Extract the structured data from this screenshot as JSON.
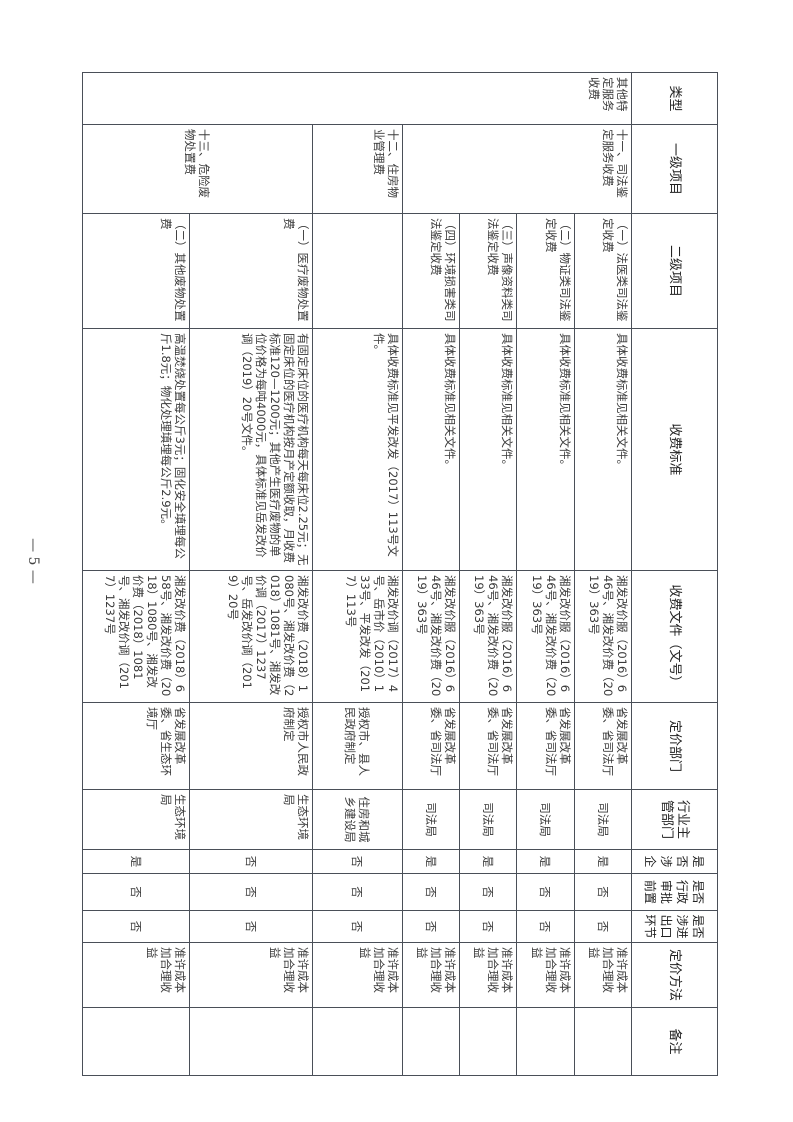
{
  "headers": [
    "类型",
    "一级项目",
    "二级项目",
    "收费标准",
    "收费文件（文号）",
    "定价部门",
    "行业主管部门",
    "是否涉企",
    "是否行政审批前置",
    "是否涉进出口环节",
    "定价方法",
    "备注"
  ],
  "category": "其他特定服务收费",
  "level1": {
    "judicial": "十一、司法鉴定服务收费",
    "housing": "十二、住房物业管理费",
    "hazardous": "十三、危险废物处置费"
  },
  "rows": [
    {
      "level2": "（一）法医类司法鉴定收费",
      "standard": "具体收费标准见相关文件。",
      "document": "湘发改价服（2016）646号、湘发改价费（2019）363号",
      "pricing_dept": "省发展改革委、省司法厅",
      "industry_dept": "司法局",
      "enterprise": "是",
      "approval": "否",
      "import_export": "否",
      "method": "准许成本加合理收益",
      "remark": ""
    },
    {
      "level2": "（二）物证类司法鉴定收费",
      "standard": "具体收费标准见相关文件。",
      "document": "湘发改价服（2016）646号、湘发改价费（2019）363号",
      "pricing_dept": "省发展改革委、省司法厅",
      "industry_dept": "司法局",
      "enterprise": "是",
      "approval": "否",
      "import_export": "否",
      "method": "准许成本加合理收益",
      "remark": ""
    },
    {
      "level2": "（三）声像资料类司法鉴定收费",
      "standard": "具体收费标准见相关文件。",
      "document": "湘发改价服（2016）646号、湘发改价费（2019）363号",
      "pricing_dept": "省发展改革委、省司法厅",
      "industry_dept": "司法局",
      "enterprise": "是",
      "approval": "否",
      "import_export": "否",
      "method": "准许成本加合理收益",
      "remark": ""
    },
    {
      "level2": "（四）环境损害类司法鉴定收费",
      "standard": "具体收费标准见相关文件。",
      "document": "湘发改价服（2016）646号、湘发改价费（2019）363号",
      "pricing_dept": "省发展改革委、省司法厅",
      "industry_dept": "司法局",
      "enterprise": "是",
      "approval": "否",
      "import_export": "否",
      "method": "准许成本加合理收益",
      "remark": ""
    },
    {
      "level2": "",
      "standard": "具体收费标准见平发改发（2017）113号文件。",
      "document": "湘发改价调（2017）4号、岳市价（2010）133号、平发改发（2017）113号",
      "pricing_dept": "授权市、县人民政府制定",
      "industry_dept": "住房和城乡建设局",
      "enterprise": "否",
      "approval": "否",
      "import_export": "否",
      "method": "准许成本加合理收益",
      "remark": ""
    },
    {
      "level2": "（一）医疗废物处置费",
      "standard": "有固定床位的医疗机构每天每床位2.25元；无固定床位的医疗机构按月产定额收取，月收费标准120—1200元；其他产生医疗废物的单位价格为每吨4000元，具体标准见岳发改价调（2019）20号文件。",
      "document": "湘发改价费（2018）1080号、湘发改价费（2018）1081号、湘发改价调（2017）1237号、岳发改价调（2019）20号",
      "pricing_dept": "授权市人民政府制定",
      "industry_dept": "生态环境局",
      "enterprise": "否",
      "approval": "否",
      "import_export": "否",
      "method": "准许成本加合理收益",
      "remark": ""
    },
    {
      "level2": "（二）其他废物处置费",
      "standard": "高温焚烧处置每公斤3元；固化安全填埋每公斤1.8元；物化处理填埋每公斤2.9元。",
      "document": "湘发改价费（2018）658号、湘发改价费（2018）1080号、湘发改价费（2018）1081号、湘发改价调（2017）1237号",
      "pricing_dept": "省发展改革委、省生态环境厅",
      "industry_dept": "生态环境局",
      "enterprise": "是",
      "approval": "否",
      "import_export": "否",
      "method": "准许成本加合理收益",
      "remark": ""
    }
  ],
  "page_number": "— 5 —"
}
